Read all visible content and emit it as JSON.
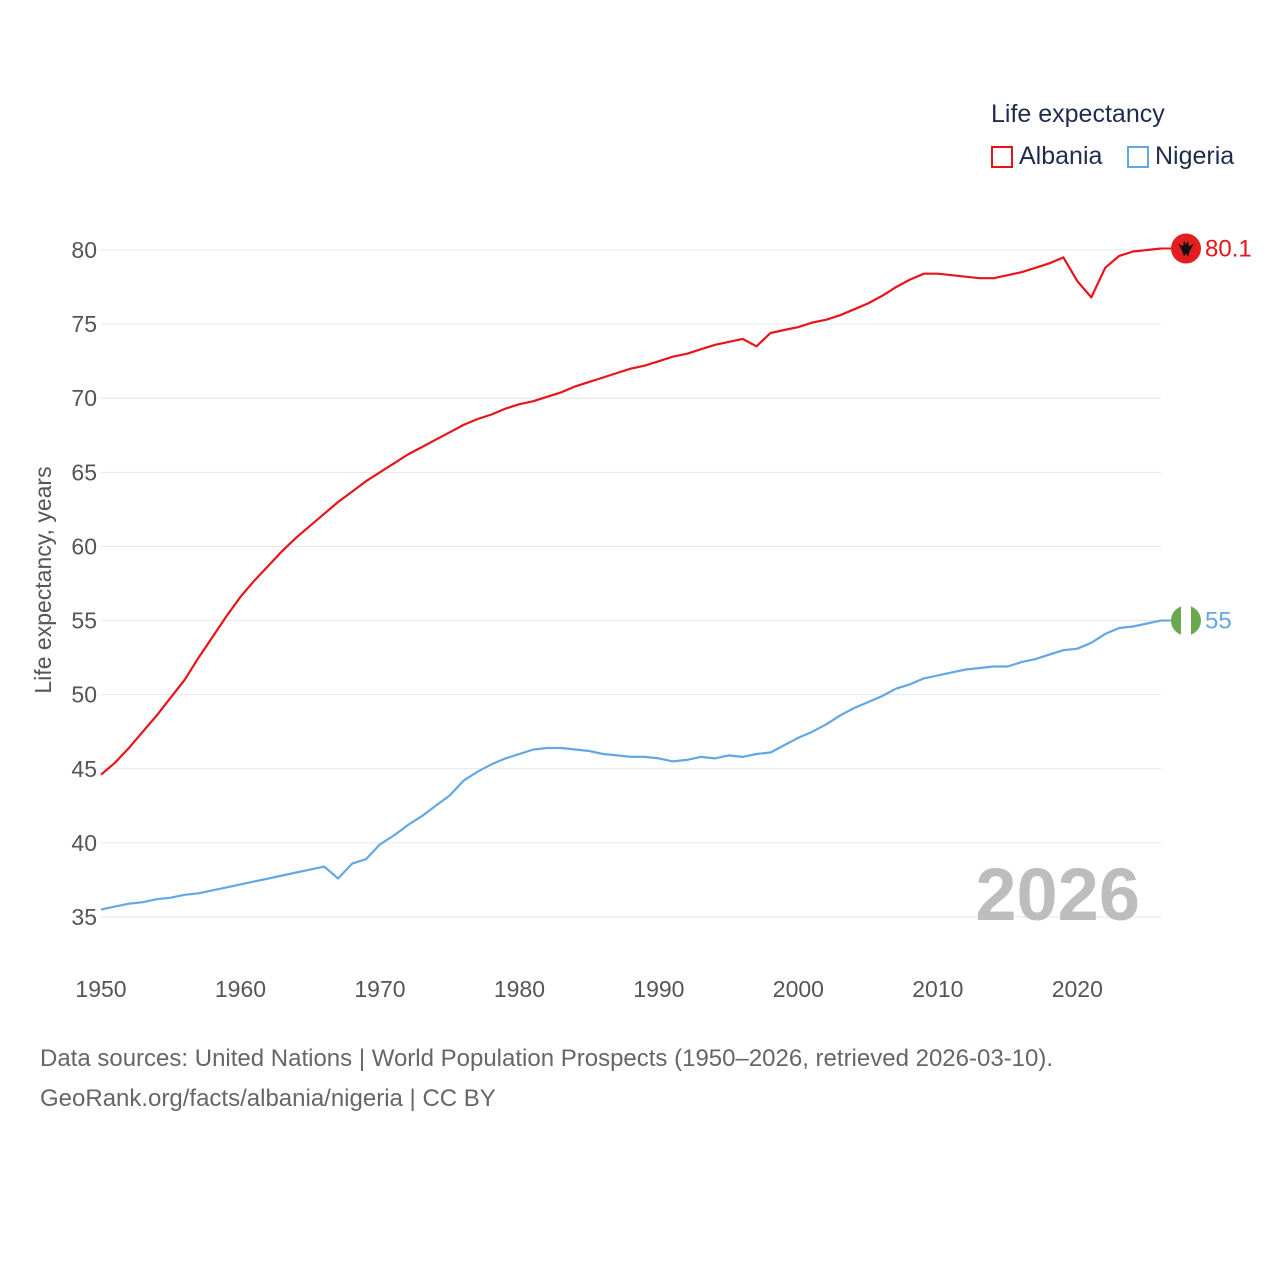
{
  "legend": {
    "title": "Life expectancy",
    "items": [
      {
        "name": "Albania",
        "color": "#e8141b"
      },
      {
        "name": "Nigeria",
        "color": "#62a7e6"
      }
    ]
  },
  "year_watermark": "2026",
  "footer": {
    "line1": "Data sources: United Nations | World Population Prospects (1950–2026, retrieved 2026-03-10).",
    "line2": "GeoRank.org/facts/albania/nigeria | CC BY"
  },
  "chart_data": {
    "type": "line",
    "title": "Life expectancy",
    "xlabel": "",
    "ylabel": "Life expectancy, years",
    "xlim": [
      1950,
      2026
    ],
    "ylim": [
      33,
      82
    ],
    "grid": true,
    "legend_position": "top-right",
    "x_ticks": [
      1950,
      1960,
      1970,
      1980,
      1990,
      2000,
      2010,
      2020
    ],
    "y_ticks": [
      35,
      40,
      45,
      50,
      55,
      60,
      65,
      70,
      75,
      80
    ],
    "series": [
      {
        "name": "Albania",
        "color": "#e8141b",
        "end_label": "80.1",
        "flag_icon": "albania-flag-icon",
        "x": [
          1950,
          1951,
          1952,
          1953,
          1954,
          1955,
          1956,
          1957,
          1958,
          1959,
          1960,
          1961,
          1962,
          1963,
          1964,
          1965,
          1966,
          1967,
          1968,
          1969,
          1970,
          1971,
          1972,
          1973,
          1974,
          1975,
          1976,
          1977,
          1978,
          1979,
          1980,
          1981,
          1982,
          1983,
          1984,
          1985,
          1986,
          1987,
          1988,
          1989,
          1990,
          1991,
          1992,
          1993,
          1994,
          1995,
          1996,
          1997,
          1998,
          1999,
          2000,
          2001,
          2002,
          2003,
          2004,
          2005,
          2006,
          2007,
          2008,
          2009,
          2010,
          2011,
          2012,
          2013,
          2014,
          2015,
          2016,
          2017,
          2018,
          2019,
          2020,
          2021,
          2022,
          2023,
          2024,
          2025,
          2026
        ],
        "y": [
          44.6,
          45.4,
          46.4,
          47.5,
          48.6,
          49.8,
          51.0,
          52.5,
          53.9,
          55.3,
          56.6,
          57.7,
          58.7,
          59.7,
          60.6,
          61.4,
          62.2,
          63.0,
          63.7,
          64.4,
          65.0,
          65.6,
          66.2,
          66.7,
          67.2,
          67.7,
          68.2,
          68.6,
          68.9,
          69.3,
          69.6,
          69.8,
          70.1,
          70.4,
          70.8,
          71.1,
          71.4,
          71.7,
          72.0,
          72.2,
          72.5,
          72.8,
          73.0,
          73.3,
          73.6,
          73.8,
          74.0,
          73.5,
          74.4,
          74.6,
          74.8,
          75.1,
          75.3,
          75.6,
          76.0,
          76.4,
          76.9,
          77.5,
          78.0,
          78.4,
          78.4,
          78.3,
          78.2,
          78.1,
          78.1,
          78.3,
          78.5,
          78.8,
          79.1,
          79.5,
          77.9,
          76.8,
          78.8,
          79.6,
          79.9,
          80.0,
          80.1
        ]
      },
      {
        "name": "Nigeria",
        "color": "#62a7e6",
        "end_label": "55",
        "flag_icon": "nigeria-flag-icon",
        "x": [
          1950,
          1951,
          1952,
          1953,
          1954,
          1955,
          1956,
          1957,
          1958,
          1959,
          1960,
          1961,
          1962,
          1963,
          1964,
          1965,
          1966,
          1967,
          1968,
          1969,
          1970,
          1971,
          1972,
          1973,
          1974,
          1975,
          1976,
          1977,
          1978,
          1979,
          1980,
          1981,
          1982,
          1983,
          1984,
          1985,
          1986,
          1987,
          1988,
          1989,
          1990,
          1991,
          1992,
          1993,
          1994,
          1995,
          1996,
          1997,
          1998,
          1999,
          2000,
          2001,
          2002,
          2003,
          2004,
          2005,
          2006,
          2007,
          2008,
          2009,
          2010,
          2011,
          2012,
          2013,
          2014,
          2015,
          2016,
          2017,
          2018,
          2019,
          2020,
          2021,
          2022,
          2023,
          2024,
          2025,
          2026
        ],
        "y": [
          35.5,
          35.7,
          35.9,
          36.0,
          36.2,
          36.3,
          36.5,
          36.6,
          36.8,
          37.0,
          37.2,
          37.4,
          37.6,
          37.8,
          38.0,
          38.2,
          38.4,
          37.6,
          38.6,
          38.9,
          39.9,
          40.5,
          41.2,
          41.8,
          42.5,
          43.2,
          44.2,
          44.8,
          45.3,
          45.7,
          46.0,
          46.3,
          46.4,
          46.4,
          46.3,
          46.2,
          46.0,
          45.9,
          45.8,
          45.8,
          45.7,
          45.5,
          45.6,
          45.8,
          45.7,
          45.9,
          45.8,
          46.0,
          46.1,
          46.6,
          47.1,
          47.5,
          48.0,
          48.6,
          49.1,
          49.5,
          49.9,
          50.4,
          50.7,
          51.1,
          51.3,
          51.5,
          51.7,
          51.8,
          51.9,
          51.9,
          52.2,
          52.4,
          52.7,
          53.0,
          53.1,
          53.5,
          54.1,
          54.5,
          54.6,
          54.8,
          55.0
        ]
      }
    ]
  }
}
